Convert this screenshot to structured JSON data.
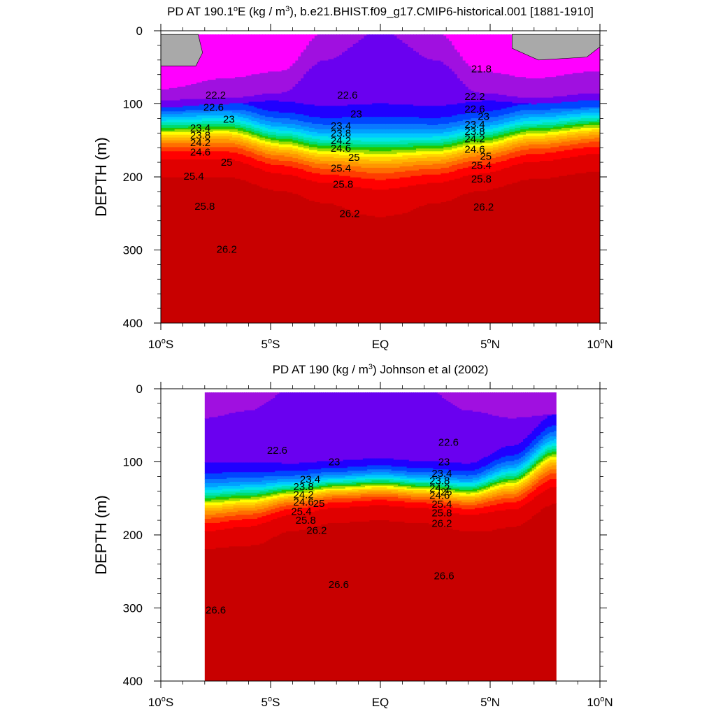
{
  "chart_data": [
    {
      "type": "heatmap",
      "title": "PD AT 190.1",
      "title_sup_unit": "o",
      "title_mid": "E (kg / m",
      "title_sup_exp": "3",
      "title_tail": "), b.e21.BHIST.f09_g17.CMIP6-historical.001 [1881-1910]",
      "ylabel": "DEPTH (m)",
      "xlabel": "",
      "xlim": [
        -10,
        10
      ],
      "ylim": [
        0,
        400
      ],
      "y_inverted": true,
      "x_ticks": [
        {
          "v": -10,
          "label": "10",
          "hemi": "S"
        },
        {
          "v": -5,
          "label": "5",
          "hemi": "S"
        },
        {
          "v": 0,
          "label": "EQ",
          "hemi": ""
        },
        {
          "v": 5,
          "label": "5",
          "hemi": "N"
        },
        {
          "v": 10,
          "label": "10",
          "hemi": "N"
        }
      ],
      "y_ticks": [
        0,
        100,
        200,
        300,
        400
      ],
      "data_extent_x": [
        -10,
        10
      ],
      "data_top_depth": 5,
      "field": {
        "x_nodes": [
          -10,
          -7,
          -4.5,
          -2.5,
          0,
          2.5,
          4.5,
          7,
          10
        ],
        "thermocline_depth": [
          135,
          133,
          150,
          160,
          163,
          160,
          150,
          136,
          128
        ],
        "thermocline_width": [
          30,
          32,
          34,
          36,
          40,
          36,
          34,
          32,
          30
        ],
        "deep_bump_depth": [
          0,
          0,
          0,
          10,
          45,
          10,
          0,
          0,
          0
        ],
        "surface_contours": [
          {
            "value": 21.4,
            "depths": [
              80,
              65,
              55,
              0,
              0,
              0,
              55,
              65,
              55
            ]
          },
          {
            "value": 21.8,
            "depths": [
              95,
              92,
              85,
              40,
              0,
              40,
              85,
              92,
              85
            ]
          },
          {
            "value": 22.2,
            "depths": [
              105,
              100,
              95,
              70,
              15,
              70,
              95,
              100,
              95
            ]
          },
          {
            "value": 22.6,
            "depths": [
              110,
              108,
              110,
              100,
              70,
              100,
              110,
              108,
              105
            ]
          }
        ]
      },
      "contour_labels": [
        {
          "x": -7.5,
          "y": 88,
          "text": "22.2"
        },
        {
          "x": -7.6,
          "y": 105,
          "text": "22.6"
        },
        {
          "x": -6.9,
          "y": 121,
          "text": "23"
        },
        {
          "x": -8.2,
          "y": 133,
          "text": "23.4"
        },
        {
          "x": -8.2,
          "y": 143,
          "text": "23.8"
        },
        {
          "x": -8.2,
          "y": 153,
          "text": "24.2"
        },
        {
          "x": -8.2,
          "y": 166,
          "text": "24.6"
        },
        {
          "x": -7.0,
          "y": 180,
          "text": "25"
        },
        {
          "x": -8.5,
          "y": 199,
          "text": "25.4"
        },
        {
          "x": -8.0,
          "y": 240,
          "text": "25.8"
        },
        {
          "x": -7.0,
          "y": 299,
          "text": "26.2"
        },
        {
          "x": -1.8,
          "y": 130,
          "text": "23.4"
        },
        {
          "x": -1.8,
          "y": 140,
          "text": "23.8"
        },
        {
          "x": -1.8,
          "y": 150,
          "text": "24.2"
        },
        {
          "x": -1.8,
          "y": 161,
          "text": "24.6"
        },
        {
          "x": -1.2,
          "y": 173,
          "text": "25"
        },
        {
          "x": -1.8,
          "y": 188,
          "text": "25.4"
        },
        {
          "x": -1.7,
          "y": 210,
          "text": "25.8"
        },
        {
          "x": -1.4,
          "y": 250,
          "text": "26.2"
        },
        {
          "x": -1.5,
          "y": 88,
          "text": "22.6"
        },
        {
          "x": -1.1,
          "y": 114,
          "text": "23"
        },
        {
          "x": 4.6,
          "y": 52,
          "text": "21.8"
        },
        {
          "x": 4.3,
          "y": 90,
          "text": "22.2"
        },
        {
          "x": 4.3,
          "y": 107,
          "text": "22.6"
        },
        {
          "x": 4.7,
          "y": 117,
          "text": "23"
        },
        {
          "x": 4.3,
          "y": 128,
          "text": "23.4"
        },
        {
          "x": 4.3,
          "y": 138,
          "text": "23.8"
        },
        {
          "x": 4.3,
          "y": 148,
          "text": "24.2"
        },
        {
          "x": 4.3,
          "y": 162,
          "text": "24.6"
        },
        {
          "x": 4.8,
          "y": 172,
          "text": "25"
        },
        {
          "x": 4.6,
          "y": 184,
          "text": "25.4"
        },
        {
          "x": 4.6,
          "y": 203,
          "text": "25.8"
        },
        {
          "x": 4.7,
          "y": 241,
          "text": "26.2"
        }
      ]
    },
    {
      "type": "heatmap",
      "title": "PD AT 190 (kg / m",
      "title_sup_unit": "",
      "title_mid": "",
      "title_sup_exp": "3",
      "title_tail": ") Johnson et al (2002)",
      "ylabel": "DEPTH (m)",
      "xlabel": "",
      "xlim": [
        -10,
        10
      ],
      "ylim": [
        0,
        400
      ],
      "y_inverted": true,
      "x_ticks": [
        {
          "v": -10,
          "label": "10",
          "hemi": "S"
        },
        {
          "v": -5,
          "label": "5",
          "hemi": "S"
        },
        {
          "v": 0,
          "label": "EQ",
          "hemi": ""
        },
        {
          "v": 5,
          "label": "5",
          "hemi": "N"
        },
        {
          "v": 10,
          "label": "10",
          "hemi": "N"
        }
      ],
      "y_ticks": [
        0,
        100,
        200,
        300,
        400
      ],
      "data_extent_x": [
        -8,
        8
      ],
      "data_top_depth": 5,
      "field": {
        "x_nodes": [
          -8,
          -6,
          -4,
          -2,
          0,
          2,
          4,
          6,
          8
        ],
        "thermocline_depth": [
          152,
          148,
          140,
          133,
          130,
          134,
          140,
          125,
          88
        ],
        "thermocline_width": [
          32,
          30,
          24,
          22,
          22,
          22,
          24,
          30,
          34
        ],
        "deep_bump_depth": [
          0,
          5,
          5,
          15,
          60,
          15,
          5,
          0,
          0
        ],
        "surface_contours": [
          {
            "value": 21.8,
            "depths": [
              40,
              30,
              0,
              0,
              0,
              0,
              30,
              40,
              35
            ]
          },
          {
            "value": 22.2,
            "depths": [
              70,
              60,
              40,
              0,
              0,
              30,
              60,
              50,
              35
            ]
          },
          {
            "value": 22.6,
            "depths": [
              85,
              82,
              80,
              60,
              0,
              50,
              75,
              70,
              50
            ]
          }
        ]
      },
      "contour_labels": [
        {
          "x": -4.7,
          "y": 84,
          "text": "22.6"
        },
        {
          "x": -2.1,
          "y": 100,
          "text": "23"
        },
        {
          "x": -3.2,
          "y": 124,
          "text": "23.4"
        },
        {
          "x": -3.5,
          "y": 134,
          "text": "23.8"
        },
        {
          "x": -3.5,
          "y": 145,
          "text": "24.2"
        },
        {
          "x": -3.5,
          "y": 155,
          "text": "24.6"
        },
        {
          "x": -2.8,
          "y": 157,
          "text": "25"
        },
        {
          "x": -3.6,
          "y": 168,
          "text": "25.4"
        },
        {
          "x": -3.4,
          "y": 180,
          "text": "25.8"
        },
        {
          "x": -2.9,
          "y": 194,
          "text": "26.2"
        },
        {
          "x": -1.9,
          "y": 268,
          "text": "26.6"
        },
        {
          "x": -7.5,
          "y": 303,
          "text": "26.6"
        },
        {
          "x": 3.1,
          "y": 73,
          "text": "22.6"
        },
        {
          "x": 2.9,
          "y": 100,
          "text": "23"
        },
        {
          "x": 2.8,
          "y": 116,
          "text": "23.4"
        },
        {
          "x": 2.7,
          "y": 126,
          "text": "23.8"
        },
        {
          "x": 2.7,
          "y": 136,
          "text": "24.2"
        },
        {
          "x": 2.7,
          "y": 146,
          "text": "24.6"
        },
        {
          "x": 3.0,
          "y": 141,
          "text": "25"
        },
        {
          "x": 2.8,
          "y": 158,
          "text": "25.4"
        },
        {
          "x": 2.8,
          "y": 170,
          "text": "25.8"
        },
        {
          "x": 2.8,
          "y": 184,
          "text": "26.2"
        },
        {
          "x": 2.9,
          "y": 256,
          "text": "26.6"
        }
      ]
    }
  ],
  "colors": {
    "land_fill": "#a9a9a9",
    "contour_line": "#000000",
    "palette": [
      "#ff00ff",
      "#d60aea",
      "#a010e0",
      "#6a00f0",
      "#2000ff",
      "#0046ff",
      "#0a78ff",
      "#00a0ff",
      "#00c8ff",
      "#00e6e6",
      "#00e4b4",
      "#00dc6e",
      "#22c800",
      "#a0dc00",
      "#ffff00",
      "#ffd400",
      "#ffb400",
      "#ff9600",
      "#ff6e00",
      "#ff3c00",
      "#ff0000",
      "#e00000",
      "#c80000"
    ]
  }
}
